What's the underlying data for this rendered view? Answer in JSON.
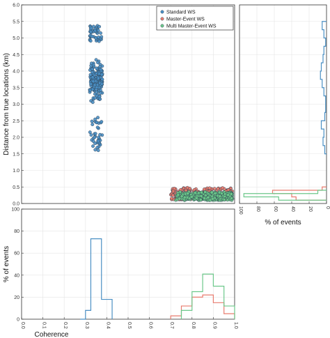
{
  "chart_data": [
    {
      "type": "scatter",
      "panel": "main",
      "ylabel": "Distance from true locations (km)",
      "xlim": [
        0,
        1.0
      ],
      "ylim": [
        0,
        6.0
      ],
      "yticks": [
        "0.0",
        "0.5",
        "1.0",
        "1.5",
        "2.0",
        "2.5",
        "3.0",
        "3.5",
        "4.0",
        "4.5",
        "5.0",
        "5.5",
        "6.0"
      ],
      "grid": true,
      "legend_position": "top-right",
      "legend": [
        "Standard WS",
        "Master-Event WS",
        "Multi Master-Event WS"
      ],
      "series": [
        {
          "name": "Standard WS",
          "color": "#4a8fc4",
          "cluster": {
            "x": [
              0.32,
              0.38
            ],
            "y_groups": [
              [
                1.6,
                2.6
              ],
              [
                2.9,
                4.5
              ],
              [
                4.9,
                5.4
              ]
            ]
          }
        },
        {
          "name": "Master-Event WS",
          "color": "#e87b6e",
          "cluster": {
            "x": [
              0.7,
              0.99
            ],
            "y": [
              0.12,
              0.48
            ]
          }
        },
        {
          "name": "Multi Master-Event WS",
          "color": "#6cc88a",
          "cluster": {
            "x": [
              0.72,
              0.99
            ],
            "y": [
              0.1,
              0.35
            ]
          }
        }
      ]
    },
    {
      "type": "bar",
      "panel": "bottom",
      "xlabel": "Coherence",
      "ylabel": "% of events",
      "xlim": [
        0,
        1.0
      ],
      "ylim": [
        0,
        100
      ],
      "xticks": [
        "0.0",
        "0.1",
        "0.2",
        "0.3",
        "0.4",
        "0.5",
        "0.6",
        "0.7",
        "0.8",
        "0.9",
        "1.0"
      ],
      "yticks": [
        "0",
        "20",
        "40",
        "60",
        "80",
        "100"
      ],
      "series": [
        {
          "name": "Standard WS",
          "color": "#4a8fc4",
          "bin_edges": [
            0.275,
            0.3,
            0.325,
            0.35,
            0.375,
            0.4,
            0.425
          ],
          "values": [
            0,
            8,
            73,
            73,
            18,
            18
          ]
        },
        {
          "name": "Master-Event WS",
          "color": "#e87b6e",
          "bin_edges": [
            0.7,
            0.75,
            0.8,
            0.85,
            0.9,
            0.95,
            1.0
          ],
          "values": [
            3,
            12,
            20,
            22,
            15,
            5
          ]
        },
        {
          "name": "Multi Master-Event WS",
          "color": "#6cc88a",
          "bin_edges": [
            0.75,
            0.8,
            0.85,
            0.9,
            0.95,
            1.0
          ],
          "values": [
            8,
            25,
            41,
            30,
            12
          ]
        }
      ]
    },
    {
      "type": "bar",
      "panel": "right",
      "orientation": "horizontal",
      "xlabel": "% of events",
      "xlim": [
        100,
        0
      ],
      "ylim": [
        0,
        6.0
      ],
      "xticks": [
        "100",
        "80",
        "60",
        "40",
        "20",
        "0"
      ],
      "series": [
        {
          "name": "Standard WS",
          "color": "#4a8fc4",
          "bin_edges": [
            1.5,
            1.75,
            2.0,
            2.25,
            2.5,
            2.75,
            3.0,
            3.25,
            3.5,
            3.75,
            4.0,
            4.25,
            4.5,
            4.75,
            5.0,
            5.25,
            5.5
          ],
          "values": [
            2,
            4,
            3,
            6,
            2,
            1,
            1,
            3,
            5,
            7,
            6,
            4,
            3,
            1,
            3,
            5
          ]
        },
        {
          "name": "Master-Event WS",
          "color": "#e87b6e",
          "bin_edges": [
            0.1,
            0.2,
            0.3,
            0.4,
            0.5
          ],
          "values": [
            35,
            40,
            62,
            5
          ]
        },
        {
          "name": "Multi Master-Event WS",
          "color": "#6cc88a",
          "bin_edges": [
            0.1,
            0.2,
            0.3,
            0.4
          ],
          "values": [
            55,
            95,
            10
          ]
        }
      ]
    }
  ]
}
